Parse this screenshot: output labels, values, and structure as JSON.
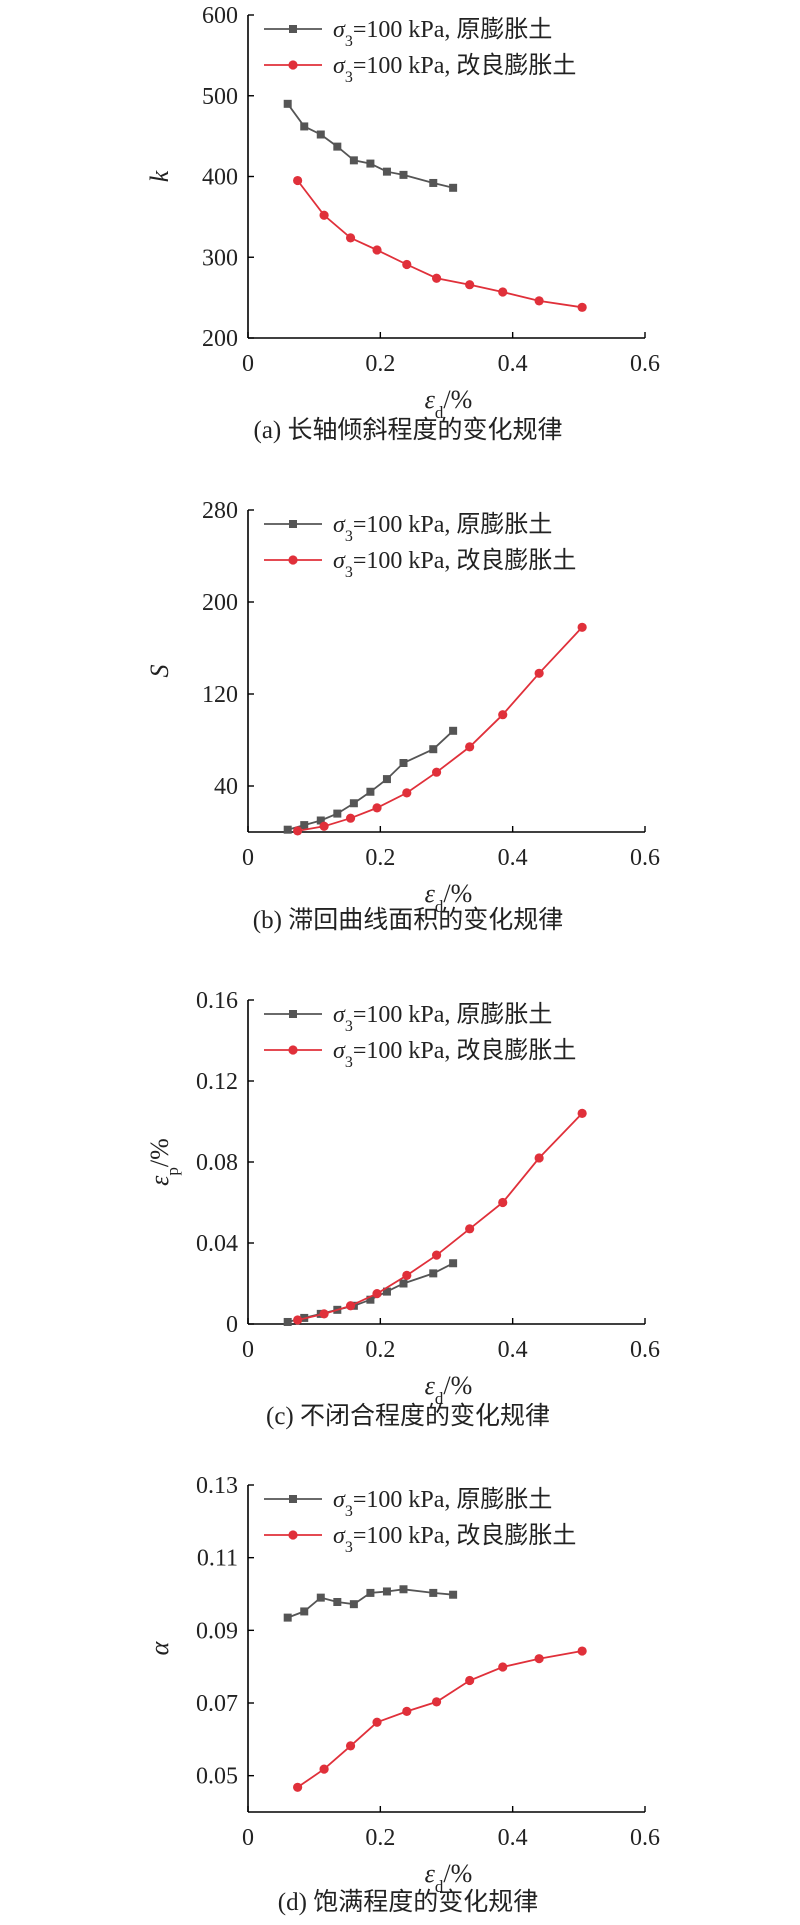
{
  "legend_labels": {
    "original": "=100 kPa, 原膨胀土",
    "improved": "=100 kPa, 改良膨胀土",
    "symbol": "σ",
    "symbol_sub": "3"
  },
  "colors": {
    "original": "#555555",
    "improved": "#e0303a"
  },
  "chart_data": [
    {
      "type": "line",
      "caption": "(a) 长轴倾斜程度的变化规律",
      "ylabel": "k",
      "xlabel": "εd/%",
      "xlabel_main": "ε",
      "xlabel_sub": "d",
      "xlabel_tail": "/%",
      "xlim": [
        0,
        0.6
      ],
      "ylim": [
        200,
        600
      ],
      "xticks": [
        "0",
        "0.2",
        "0.4",
        "0.6"
      ],
      "yticks": [
        "200",
        "300",
        "400",
        "500",
        "600"
      ],
      "grid": false,
      "legend_position": "top-left",
      "series": [
        {
          "name": "σ3=100 kPa, 原膨胀土",
          "marker": "square",
          "x": [
            0.06,
            0.085,
            0.11,
            0.135,
            0.16,
            0.185,
            0.21,
            0.235,
            0.28,
            0.31
          ],
          "y": [
            490,
            462,
            452,
            437,
            420,
            416,
            406,
            402,
            392,
            386
          ]
        },
        {
          "name": "σ3=100 kPa, 改良膨胀土",
          "marker": "circle",
          "x": [
            0.075,
            0.115,
            0.155,
            0.195,
            0.24,
            0.285,
            0.335,
            0.385,
            0.44,
            0.505
          ],
          "y": [
            395,
            352,
            324,
            309,
            291,
            274,
            266,
            257,
            246,
            238
          ]
        }
      ]
    },
    {
      "type": "line",
      "caption": "(b) 滞回曲线面积的变化规律",
      "ylabel": "S",
      "xlabel": "εd/%",
      "xlabel_main": "ε",
      "xlabel_sub": "d",
      "xlabel_tail": "/%",
      "xlim": [
        0,
        0.6
      ],
      "ylim": [
        0,
        280
      ],
      "xticks": [
        "0",
        "0.2",
        "0.4",
        "0.6"
      ],
      "yticks": [
        "40",
        "120",
        "200",
        "280"
      ],
      "grid": false,
      "legend_position": "top-left",
      "series": [
        {
          "name": "σ3=100 kPa, 原膨胀土",
          "marker": "square",
          "x": [
            0.06,
            0.085,
            0.11,
            0.135,
            0.16,
            0.185,
            0.21,
            0.235,
            0.28,
            0.31
          ],
          "y": [
            2,
            6,
            10,
            16,
            25,
            35,
            46,
            60,
            72,
            88
          ]
        },
        {
          "name": "σ3=100 kPa, 改良膨胀土",
          "marker": "circle",
          "x": [
            0.075,
            0.115,
            0.155,
            0.195,
            0.24,
            0.285,
            0.335,
            0.385,
            0.44,
            0.505
          ],
          "y": [
            1,
            5,
            12,
            21,
            34,
            52,
            74,
            102,
            138,
            178
          ]
        }
      ]
    },
    {
      "type": "line",
      "caption": "(c) 不闭合程度的变化规律",
      "ylabel": "εp/%",
      "ylabel_main": "ε",
      "ylabel_sub": "p",
      "ylabel_tail": "/%",
      "xlabel": "εd/%",
      "xlabel_main": "ε",
      "xlabel_sub": "d",
      "xlabel_tail": "/%",
      "xlim": [
        0,
        0.6
      ],
      "ylim": [
        0,
        0.16
      ],
      "xticks": [
        "0",
        "0.2",
        "0.4",
        "0.6"
      ],
      "yticks": [
        "0",
        "0.04",
        "0.08",
        "0.12",
        "0.16"
      ],
      "grid": false,
      "legend_position": "top-left",
      "series": [
        {
          "name": "σ3=100 kPa, 原膨胀土",
          "marker": "square",
          "x": [
            0.06,
            0.085,
            0.11,
            0.135,
            0.16,
            0.185,
            0.21,
            0.235,
            0.28,
            0.31
          ],
          "y": [
            0.001,
            0.003,
            0.005,
            0.007,
            0.009,
            0.012,
            0.016,
            0.02,
            0.025,
            0.03
          ]
        },
        {
          "name": "σ3=100 kPa, 改良膨胀土",
          "marker": "circle",
          "x": [
            0.075,
            0.115,
            0.155,
            0.195,
            0.24,
            0.285,
            0.335,
            0.385,
            0.44,
            0.505
          ],
          "y": [
            0.002,
            0.005,
            0.009,
            0.015,
            0.024,
            0.034,
            0.047,
            0.06,
            0.082,
            0.104
          ]
        }
      ]
    },
    {
      "type": "line",
      "caption": "(d) 饱满程度的变化规律",
      "ylabel": "α",
      "xlabel": "εd/%",
      "xlabel_main": "ε",
      "xlabel_sub": "d",
      "xlabel_tail": "/%",
      "xlim": [
        0,
        0.6
      ],
      "ylim": [
        0.04,
        0.13
      ],
      "xticks": [
        "0",
        "0.2",
        "0.4",
        "0.6"
      ],
      "yticks": [
        "0.05",
        "0.07",
        "0.09",
        "0.11",
        "0.13"
      ],
      "grid": false,
      "legend_position": "top-left",
      "series": [
        {
          "name": "σ3=100 kPa, 原膨胀土",
          "marker": "square",
          "x": [
            0.06,
            0.085,
            0.11,
            0.135,
            0.16,
            0.185,
            0.21,
            0.235,
            0.28,
            0.31
          ],
          "y": [
            0.0935,
            0.0952,
            0.099,
            0.0978,
            0.0972,
            0.1003,
            0.1007,
            0.1013,
            0.1003,
            0.0998
          ]
        },
        {
          "name": "σ3=100 kPa, 改良膨胀土",
          "marker": "circle",
          "x": [
            0.075,
            0.115,
            0.155,
            0.195,
            0.24,
            0.285,
            0.335,
            0.385,
            0.44,
            0.505
          ],
          "y": [
            0.0468,
            0.0518,
            0.0582,
            0.0647,
            0.0677,
            0.0703,
            0.0762,
            0.0799,
            0.0822,
            0.0843
          ]
        }
      ]
    }
  ]
}
